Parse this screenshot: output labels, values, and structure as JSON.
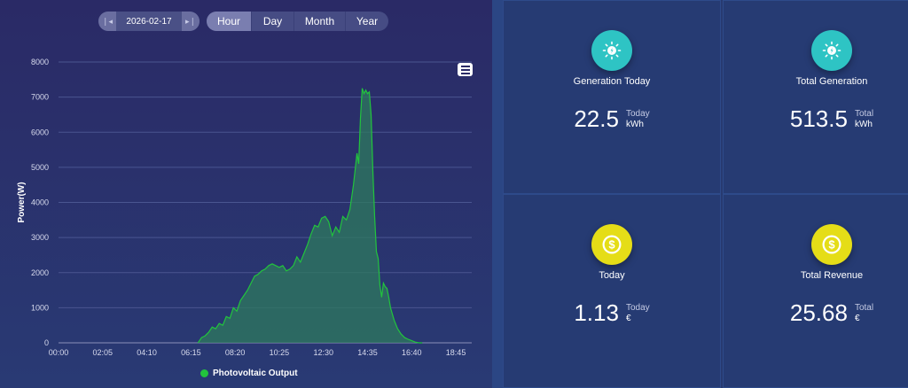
{
  "toolbar": {
    "date": "2026-02-17",
    "prev_icon": "skip-back-icon",
    "next_icon": "skip-forward-icon",
    "tabs": [
      {
        "label": "Hour",
        "active": true
      },
      {
        "label": "Day",
        "active": false
      },
      {
        "label": "Month",
        "active": false
      },
      {
        "label": "Year",
        "active": false
      }
    ],
    "menu_icon": "hamburger-menu-icon"
  },
  "chart_data": {
    "type": "area",
    "ylabel": "Power(W)",
    "xlabel": "",
    "ylim": [
      0,
      8000
    ],
    "y_ticks": [
      "0",
      "1000",
      "2000",
      "3000",
      "4000",
      "5000",
      "6000",
      "7000",
      "8000"
    ],
    "x_ticks": [
      "00:00",
      "02:05",
      "04:10",
      "06:15",
      "08:20",
      "10:25",
      "12:30",
      "14:35",
      "16:40",
      "18:45"
    ],
    "x_range_minutes": [
      0,
      1170
    ],
    "grid": true,
    "legend_position": "bottom",
    "series": [
      {
        "name": "Photovoltaic Output",
        "color": "#22c43d",
        "x": [
          "06:35",
          "06:45",
          "06:55",
          "07:05",
          "07:15",
          "07:25",
          "07:35",
          "07:45",
          "07:55",
          "08:05",
          "08:15",
          "08:25",
          "08:35",
          "08:45",
          "08:55",
          "09:05",
          "09:15",
          "09:25",
          "09:35",
          "09:45",
          "09:55",
          "10:05",
          "10:15",
          "10:25",
          "10:35",
          "10:45",
          "10:55",
          "11:05",
          "11:15",
          "11:25",
          "11:35",
          "11:45",
          "11:55",
          "12:05",
          "12:15",
          "12:25",
          "12:35",
          "12:45",
          "12:55",
          "13:05",
          "13:15",
          "13:25",
          "13:35",
          "13:45",
          "13:55",
          "14:05",
          "14:10",
          "14:15",
          "14:20",
          "14:25",
          "14:30",
          "14:35",
          "14:40",
          "14:45",
          "14:50",
          "14:55",
          "15:00",
          "15:05",
          "15:10",
          "15:15",
          "15:20",
          "15:25",
          "15:30",
          "15:35",
          "15:40",
          "15:50",
          "16:00",
          "16:10",
          "16:20",
          "16:30",
          "16:40",
          "16:50",
          "17:00",
          "17:10"
        ],
        "y": [
          0,
          150,
          200,
          300,
          450,
          400,
          550,
          500,
          750,
          700,
          1000,
          900,
          1200,
          1350,
          1500,
          1700,
          1900,
          1950,
          2050,
          2100,
          2200,
          2250,
          2200,
          2150,
          2200,
          2050,
          2100,
          2200,
          2450,
          2300,
          2550,
          2800,
          3100,
          3350,
          3300,
          3550,
          3600,
          3450,
          3050,
          3300,
          3150,
          3600,
          3500,
          3800,
          4500,
          5400,
          5100,
          6400,
          7250,
          7100,
          7200,
          7100,
          7150,
          6500,
          4900,
          3600,
          2600,
          2400,
          1650,
          1300,
          1700,
          1600,
          1550,
          1300,
          1000,
          650,
          400,
          250,
          150,
          100,
          60,
          20,
          0,
          0
        ]
      }
    ]
  },
  "cards": [
    {
      "icon": "sun-bolt-icon",
      "label": "Generation Today",
      "value": "22.5",
      "sub": "Today",
      "unit": "kWh",
      "icon_color": "#2ec4c4"
    },
    {
      "icon": "sun-bolt-icon",
      "label": "Total Generation",
      "value": "513.5",
      "sub": "Total",
      "unit": "kWh",
      "icon_color": "#2ec4c4"
    },
    {
      "icon": "dollar-coin-icon",
      "label": "Today",
      "value": "1.13",
      "sub": "Today",
      "unit": "€",
      "icon_color": "#e5dd17"
    },
    {
      "icon": "dollar-coin-icon",
      "label": "Total Revenue",
      "value": "25.68",
      "sub": "Total",
      "unit": "€",
      "icon_color": "#e5dd17"
    }
  ]
}
